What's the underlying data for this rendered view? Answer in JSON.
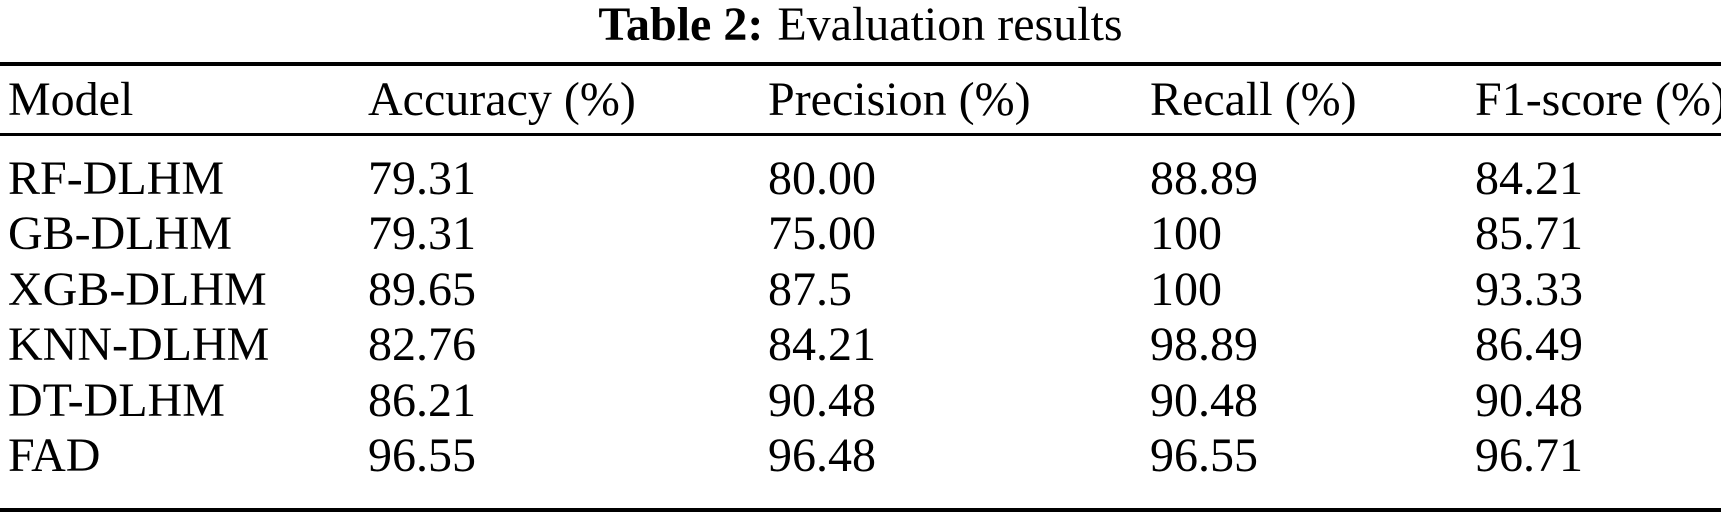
{
  "page": {
    "background": "#ffffff",
    "text_color": "#000000",
    "rule_color": "#000000"
  },
  "caption": {
    "label": "Table 2:",
    "text": "Evaluation results"
  },
  "table": {
    "headers": [
      "Model",
      "Accuracy (%)",
      "Precision (%)",
      "Recall (%)",
      "F1-score (%)"
    ],
    "rows": [
      {
        "model": "RF-DLHM",
        "accuracy": "79.31",
        "precision": "80.00",
        "recall": "88.89",
        "f1": "84.21"
      },
      {
        "model": "GB-DLHM",
        "accuracy": "79.31",
        "precision": "75.00",
        "recall": "100",
        "f1": "85.71"
      },
      {
        "model": "XGB-DLHM",
        "accuracy": "89.65",
        "precision": "87.5",
        "recall": "100",
        "f1": "93.33"
      },
      {
        "model": "KNN-DLHM",
        "accuracy": "82.76",
        "precision": "84.21",
        "recall": "98.89",
        "f1": "86.49"
      },
      {
        "model": "DT-DLHM",
        "accuracy": "86.21",
        "precision": "90.48",
        "recall": "90.48",
        "f1": "90.48"
      },
      {
        "model": "FAD",
        "accuracy": "96.55",
        "precision": "96.48",
        "recall": "96.55",
        "f1": "96.71"
      }
    ]
  },
  "chart_data": {
    "type": "table",
    "title": "Table 2: Evaluation results",
    "columns": [
      "Model",
      "Accuracy (%)",
      "Precision (%)",
      "Recall (%)",
      "F1-score (%)"
    ],
    "rows": [
      [
        "RF-DLHM",
        79.31,
        80.0,
        88.89,
        84.21
      ],
      [
        "GB-DLHM",
        79.31,
        75.0,
        100,
        85.71
      ],
      [
        "XGB-DLHM",
        89.65,
        87.5,
        100,
        93.33
      ],
      [
        "KNN-DLHM",
        82.76,
        84.21,
        98.89,
        86.49
      ],
      [
        "DT-DLHM",
        86.21,
        90.48,
        90.48,
        90.48
      ],
      [
        "FAD",
        96.55,
        96.48,
        96.55,
        96.71
      ]
    ]
  }
}
